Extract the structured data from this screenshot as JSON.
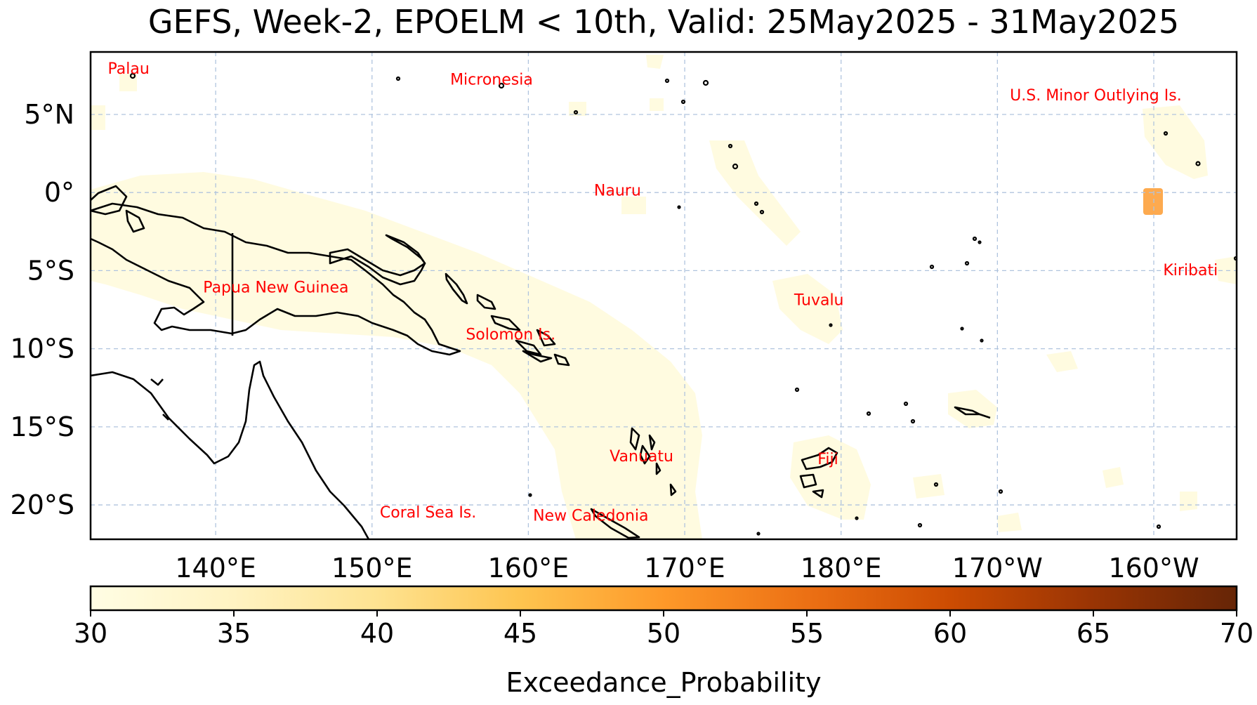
{
  "title": "GEFS, Week-2, EPOELM < 10th, Valid: 25May2025 - 31May2025",
  "map": {
    "lat_ticks": [
      {
        "lat": 5,
        "label": "5°N"
      },
      {
        "lat": 0,
        "label": "0°"
      },
      {
        "lat": -5,
        "label": "5°S"
      },
      {
        "lat": -10,
        "label": "10°S"
      },
      {
        "lat": -15,
        "label": "15°S"
      },
      {
        "lat": -20,
        "label": "20°S"
      }
    ],
    "lon_ticks": [
      {
        "lon": 140,
        "label": "140°E"
      },
      {
        "lon": 150,
        "label": "150°E"
      },
      {
        "lon": 160,
        "label": "160°E"
      },
      {
        "lon": 170,
        "label": "170°E"
      },
      {
        "lon": 180,
        "label": "180°E"
      },
      {
        "lon": 190,
        "label": "170°W"
      },
      {
        "lon": 200,
        "label": "160°W"
      }
    ],
    "lat_range": [
      -22.2,
      9
    ],
    "lon_range": [
      132,
      205.3
    ],
    "region_labels": [
      {
        "text": "Palau",
        "lat": 7.6,
        "lon": 133.1
      },
      {
        "text": "Micronesia",
        "lat": 6.9,
        "lon": 155.0
      },
      {
        "text": "U.S. Minor Outlying Is.",
        "lat": 5.9,
        "lon": 190.8
      },
      {
        "text": "Nauru",
        "lat": -0.2,
        "lon": 164.2
      },
      {
        "text": "Kiribati",
        "lat": -5.3,
        "lon": 200.6
      },
      {
        "text": "Papua New Guinea",
        "lat": -6.4,
        "lon": 139.2
      },
      {
        "text": "Tuvalu",
        "lat": -7.2,
        "lon": 177.0
      },
      {
        "text": "Solomon Is.",
        "lat": -9.4,
        "lon": 156.0
      },
      {
        "text": "Vanuatu",
        "lat": -17.2,
        "lon": 165.2
      },
      {
        "text": "Fiji",
        "lat": -17.4,
        "lon": 178.5
      },
      {
        "text": "Coral Sea Is.",
        "lat": -20.8,
        "lon": 150.5
      },
      {
        "text": "New Caledonia",
        "lat": -21.0,
        "lon": 160.3
      }
    ],
    "hotspots": [
      {
        "lon": 199.9,
        "lat": -0.4,
        "probability": 47
      }
    ],
    "colors": {
      "low": "#fffbe0",
      "hotspot": "#fdaa4f",
      "label": "#ff0000",
      "grid": "#b0c4de"
    }
  },
  "colorbar": {
    "label": "Exceedance_Probability",
    "min": 30,
    "max": 70,
    "ticks": [
      "30",
      "35",
      "40",
      "45",
      "50",
      "55",
      "60",
      "65",
      "70"
    ],
    "colors": [
      "#fffde4",
      "#fff3c2",
      "#fee391",
      "#fec44f",
      "#fe9929",
      "#ec7014",
      "#cc4c02",
      "#993404",
      "#662506"
    ]
  }
}
